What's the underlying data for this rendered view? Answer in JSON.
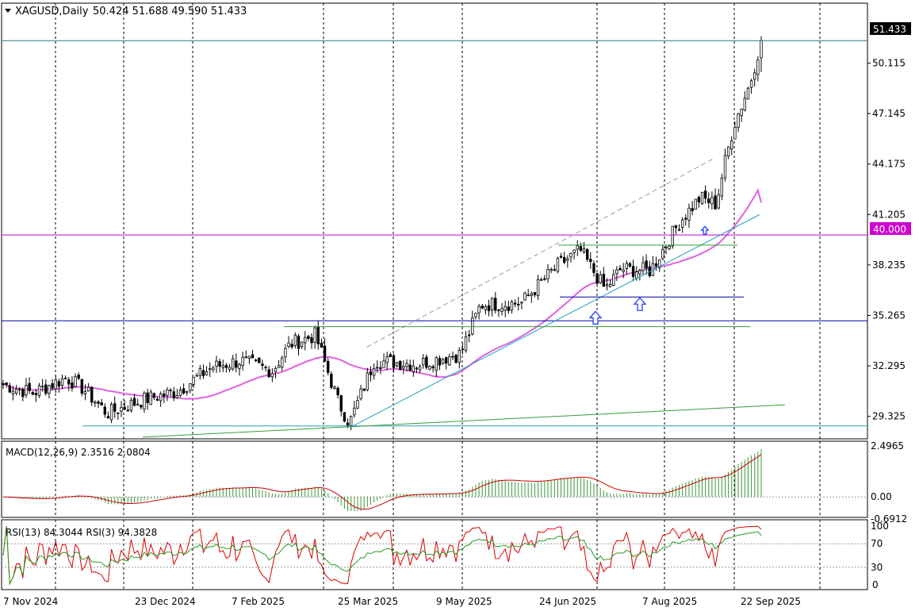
{
  "header": {
    "title": "XAGUSD,Daily",
    "ohlc": "50.424 51.688 49.590 51.433"
  },
  "indicators": {
    "macd_label": "MACD(12,26,9) 2.3516 2.0804",
    "rsi_label": "RSI(13) 84.3044  RSI(3) 94.3828"
  },
  "price_badges": {
    "last": "51.433",
    "level": "40.000"
  },
  "colors": {
    "candle_up": "#000000",
    "candle_down": "#000000",
    "sma": "#e060e0",
    "macd_hist": "#3a9a3a",
    "macd_signal": "#cc0000",
    "rsi13": "#2a9a2a",
    "rsi3": "#dd0000",
    "level_magenta": "#d000d0",
    "level_blue": "#0000aa",
    "trend_teal": "#20a0c0",
    "trend_green": "#3a9a3a",
    "arrow": "#2040ff",
    "last_badge_bg": "#000000"
  },
  "chart_data": [
    {
      "type": "candlestick",
      "symbol": "XAGUSD",
      "timeframe": "Daily",
      "open": 50.424,
      "high": 51.688,
      "low": 49.59,
      "close": 51.433,
      "ylim": [
        28.0,
        52.8
      ],
      "y_ticks": [
        "50.115",
        "47.145",
        "44.175",
        "41.205",
        "38.235",
        "35.265",
        "32.295",
        "29.325"
      ],
      "x_ticks": [
        "7 Nov 2024",
        "23 Dec 2024",
        "7 Feb 2025",
        "25 Mar 2025",
        "9 May 2025",
        "24 Jun 2025",
        "7 Aug 2025",
        "22 Sep 2025"
      ],
      "horizontal_levels": [
        40.0,
        34.95,
        28.76
      ],
      "close_series_approx": [
        {
          "date": "2024-11-07",
          "close": 31.2
        },
        {
          "date": "2024-11-20",
          "close": 30.7
        },
        {
          "date": "2024-12-05",
          "close": 31.6
        },
        {
          "date": "2024-12-12",
          "close": 31.0
        },
        {
          "date": "2024-12-23",
          "close": 29.5
        },
        {
          "date": "2025-01-08",
          "close": 30.3
        },
        {
          "date": "2025-01-23",
          "close": 30.8
        },
        {
          "date": "2025-02-07",
          "close": 32.2
        },
        {
          "date": "2025-02-20",
          "close": 32.6
        },
        {
          "date": "2025-03-06",
          "close": 32.0
        },
        {
          "date": "2025-03-14",
          "close": 33.6
        },
        {
          "date": "2025-03-25",
          "close": 34.1
        },
        {
          "date": "2025-04-04",
          "close": 30.2
        },
        {
          "date": "2025-04-09",
          "close": 28.9
        },
        {
          "date": "2025-04-20",
          "close": 32.6
        },
        {
          "date": "2025-05-09",
          "close": 32.4
        },
        {
          "date": "2025-05-28",
          "close": 33.0
        },
        {
          "date": "2025-06-06",
          "close": 35.9
        },
        {
          "date": "2025-06-24",
          "close": 36.0
        },
        {
          "date": "2025-07-10",
          "close": 38.2
        },
        {
          "date": "2025-07-20",
          "close": 39.1
        },
        {
          "date": "2025-07-31",
          "close": 36.8
        },
        {
          "date": "2025-08-07",
          "close": 38.0
        },
        {
          "date": "2025-08-20",
          "close": 37.9
        },
        {
          "date": "2025-09-02",
          "close": 40.8
        },
        {
          "date": "2025-09-11",
          "close": 42.2
        },
        {
          "date": "2025-09-18",
          "close": 41.8
        },
        {
          "date": "2025-09-22",
          "close": 44.3
        },
        {
          "date": "2025-09-26",
          "close": 46.5
        },
        {
          "date": "2025-10-03",
          "close": 48.9
        },
        {
          "date": "2025-10-08",
          "close": 51.433
        }
      ],
      "moving_average_end": 41.9
    },
    {
      "type": "macd",
      "params": "12,26,9",
      "macd": 2.3516,
      "signal": 2.0804,
      "y_ticks": [
        "2.4965",
        "0.00",
        "-0.6912"
      ]
    },
    {
      "type": "rsi",
      "series": [
        {
          "name": "RSI(13)",
          "last": 84.3044
        },
        {
          "name": "RSI(3)",
          "last": 94.3828
        }
      ],
      "y_ticks": [
        "100",
        "70",
        "30",
        "0"
      ],
      "levels": [
        70,
        30
      ]
    }
  ]
}
